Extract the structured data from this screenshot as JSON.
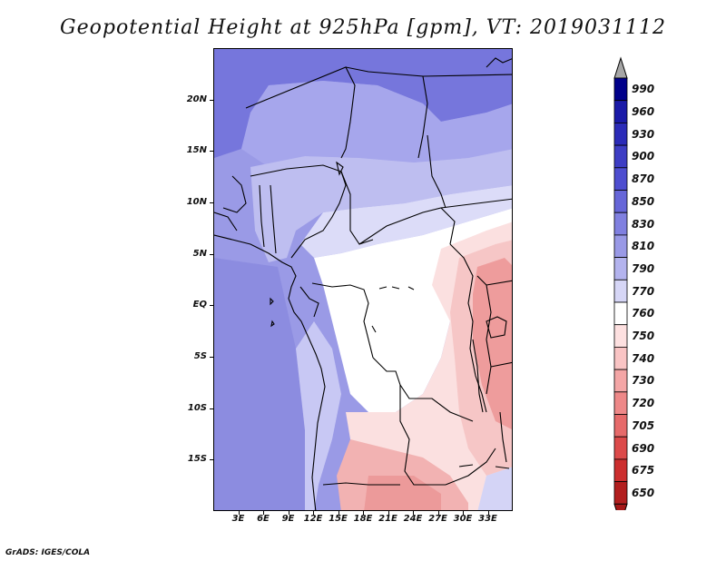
{
  "title": "Geopotential Height at 925hPa [gpm], VT: 2019031112",
  "credit": "GrADS: IGES/COLA",
  "map": {
    "lon_range": [
      0,
      36
    ],
    "lat_range": [
      -20,
      25
    ],
    "y_ticks": [
      {
        "label": "20N",
        "lat": 20
      },
      {
        "label": "15N",
        "lat": 15
      },
      {
        "label": "10N",
        "lat": 10
      },
      {
        "label": "5N",
        "lat": 5
      },
      {
        "label": "EQ",
        "lat": 0
      },
      {
        "label": "5S",
        "lat": -5
      },
      {
        "label": "10S",
        "lat": -10
      },
      {
        "label": "15S",
        "lat": -15
      }
    ],
    "x_ticks": [
      {
        "label": "3E",
        "lon": 3
      },
      {
        "label": "6E",
        "lon": 6
      },
      {
        "label": "9E",
        "lon": 9
      },
      {
        "label": "12E",
        "lon": 12
      },
      {
        "label": "15E",
        "lon": 15
      },
      {
        "label": "18E",
        "lon": 18
      },
      {
        "label": "21E",
        "lon": 21
      },
      {
        "label": "24E",
        "lon": 24
      },
      {
        "label": "27E",
        "lon": 27
      },
      {
        "label": "30E",
        "lon": 30
      },
      {
        "label": "33E",
        "lon": 33
      }
    ]
  },
  "colorbar": {
    "levels": [
      "990",
      "960",
      "930",
      "900",
      "870",
      "850",
      "830",
      "810",
      "790",
      "770",
      "760",
      "750",
      "740",
      "730",
      "720",
      "705",
      "690",
      "675",
      "650"
    ],
    "colors": [
      "#00008a",
      "#1a1aa8",
      "#2b2bb8",
      "#3d3dc4",
      "#4e4ed0",
      "#6666d8",
      "#8080e0",
      "#9999e6",
      "#b3b3ee",
      "#d6d6f6",
      "#ffffff",
      "#fde0e0",
      "#f9c4c4",
      "#f4a6a6",
      "#ee8888",
      "#e66a6a",
      "#dc4a4a",
      "#cc2e2e",
      "#b21e1e"
    ],
    "over_color": "#a6a6a6",
    "under_color": "#a51717"
  },
  "fields": {
    "sahel_blue": "#8e8ee4",
    "north_dark": "#6a6ad8",
    "sahara_mid": "#a8a8ec",
    "ocean": "#a0a0e8",
    "ocean_deep": "#8e8ee2",
    "light_blue": "#c4c4f2",
    "pale_blue": "#dedef8",
    "central_white": "#ffffff",
    "pink_light": "#fce2e2",
    "pink": "#f7c8c8",
    "pink_mid": "#f2aaaa",
    "red_core": "#ea9090"
  }
}
